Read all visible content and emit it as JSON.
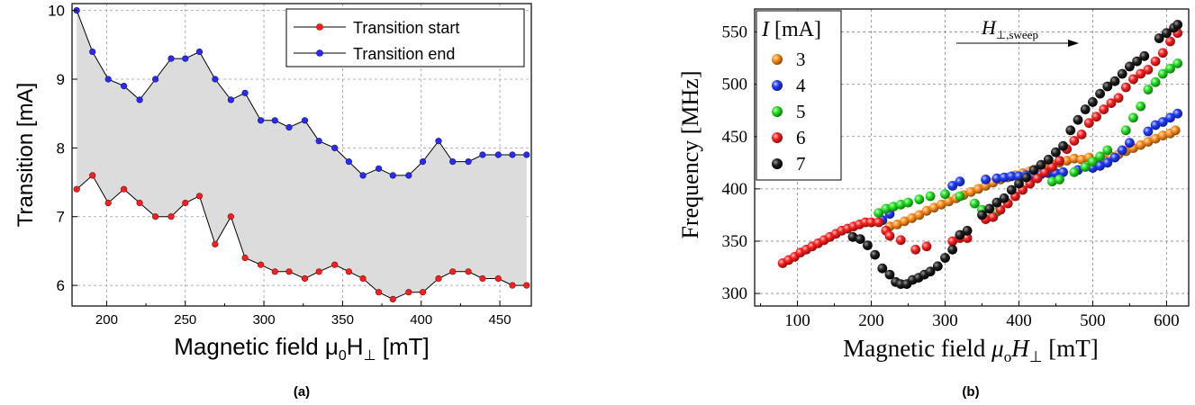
{
  "chart_data": [
    {
      "panel_label": "(a)",
      "type": "line",
      "title": "",
      "xlabel": "Magnetic field μ0H⊥ [mT]",
      "xlabel_parts": {
        "main": "Magnetic field μ",
        "sub": "0",
        "mid": "H",
        "sub2": "⊥",
        "unit": " [mT]"
      },
      "ylabel": "Transition [mA]",
      "xlim": [
        178,
        470
      ],
      "ylim": [
        5.7,
        10.1
      ],
      "xticks": [
        200,
        250,
        300,
        350,
        400,
        450
      ],
      "yticks": [
        6,
        7,
        8,
        9,
        10
      ],
      "grid": true,
      "legend_position": "top-right",
      "fill_between": true,
      "x": [
        181,
        191,
        201,
        211,
        221,
        231,
        241,
        250,
        259,
        269,
        279,
        288,
        298,
        307,
        316,
        326,
        335,
        345,
        354,
        363,
        373,
        382,
        392,
        401,
        411,
        420,
        430,
        439,
        449,
        458,
        467
      ],
      "series": [
        {
          "name": "Transition start",
          "color": "#ff1e1e",
          "values": [
            7.4,
            7.6,
            7.2,
            7.4,
            7.2,
            7.0,
            7.0,
            7.2,
            7.3,
            6.6,
            7.0,
            6.4,
            6.3,
            6.2,
            6.2,
            6.1,
            6.2,
            6.3,
            6.2,
            6.1,
            5.9,
            5.8,
            5.9,
            5.9,
            6.1,
            6.2,
            6.2,
            6.1,
            6.1,
            6.0,
            6.0
          ]
        },
        {
          "name": "Transition end",
          "color": "#2a2aff",
          "values": [
            10.0,
            9.4,
            9.0,
            8.9,
            8.7,
            9.0,
            9.3,
            9.3,
            9.4,
            9.0,
            8.7,
            8.8,
            8.4,
            8.4,
            8.3,
            8.4,
            8.1,
            8.0,
            7.8,
            7.6,
            7.7,
            7.6,
            7.6,
            7.8,
            8.1,
            7.8,
            7.8,
            7.9,
            7.9,
            7.9,
            7.9
          ]
        }
      ]
    },
    {
      "panel_label": "(b)",
      "type": "scatter",
      "title": "",
      "xlabel": "Magnetic field μoH⊥ [mT]",
      "xlabel_parts": {
        "main": "Magnetic field ",
        "mu": "μ",
        "sub": "o",
        "mid": "H",
        "sub2": "⊥",
        "unit": " [mT]"
      },
      "ylabel": "Frequency [MHz]",
      "xlim": [
        42,
        630
      ],
      "ylim": [
        288,
        572
      ],
      "xticks": [
        100,
        200,
        300,
        400,
        500,
        600
      ],
      "yticks": [
        300,
        350,
        400,
        450,
        500,
        550
      ],
      "grid": true,
      "legend_position": "top-left",
      "legend_title": "I [mA]",
      "legend_title_parts": {
        "italic": "I",
        "rest": " [mA]"
      },
      "annotation": {
        "main": "H",
        "sub": "⊥,sweep"
      },
      "series": [
        {
          "name": "3",
          "color": "#ff8c1a",
          "points": [
            [
              225,
              364
            ],
            [
              235,
              366
            ],
            [
              245,
              369
            ],
            [
              255,
              372
            ],
            [
              265,
              375
            ],
            [
              275,
              379
            ],
            [
              285,
              382
            ],
            [
              295,
              385
            ],
            [
              305,
              388
            ],
            [
              315,
              391
            ],
            [
              325,
              394
            ],
            [
              335,
              397
            ],
            [
              345,
              400
            ],
            [
              355,
              403
            ],
            [
              365,
              406
            ],
            [
              375,
              409
            ],
            [
              385,
              411
            ],
            [
              395,
              413
            ],
            [
              405,
              415
            ],
            [
              415,
              417
            ],
            [
              425,
              419
            ],
            [
              435,
              421
            ],
            [
              445,
              423
            ],
            [
              455,
              425
            ],
            [
              465,
              427
            ],
            [
              475,
              429
            ],
            [
              485,
              428
            ],
            [
              495,
              430
            ],
            [
              505,
              426
            ],
            [
              515,
              428
            ],
            [
              525,
              431
            ],
            [
              535,
              433
            ],
            [
              545,
              436
            ],
            [
              555,
              439
            ],
            [
              565,
              442
            ],
            [
              575,
              445
            ],
            [
              585,
              448
            ],
            [
              595,
              451
            ],
            [
              605,
              453
            ],
            [
              612,
              456
            ]
          ]
        },
        {
          "name": "4",
          "color": "#1f3bff",
          "points": [
            [
              215,
              370
            ],
            [
              225,
              376
            ],
            [
              310,
              403
            ],
            [
              320,
              407
            ],
            [
              355,
              409
            ],
            [
              370,
              410
            ],
            [
              380,
              411
            ],
            [
              390,
              412
            ],
            [
              400,
              412
            ],
            [
              410,
              413
            ],
            [
              420,
              413
            ],
            [
              430,
              414
            ],
            [
              440,
              415
            ],
            [
              450,
              415
            ],
            [
              460,
              416
            ],
            [
              480,
              418
            ],
            [
              500,
              420
            ],
            [
              510,
              422
            ],
            [
              520,
              425
            ],
            [
              530,
              430
            ],
            [
              540,
              437
            ],
            [
              550,
              444
            ],
            [
              575,
              455
            ],
            [
              585,
              461
            ],
            [
              595,
              464
            ],
            [
              605,
              468
            ],
            [
              615,
              472
            ]
          ]
        },
        {
          "name": "5",
          "color": "#22e022",
          "points": [
            [
              210,
              377
            ],
            [
              220,
              381
            ],
            [
              230,
              383
            ],
            [
              240,
              385
            ],
            [
              250,
              387
            ],
            [
              265,
              390
            ],
            [
              280,
              393
            ],
            [
              300,
              395
            ],
            [
              320,
              393
            ],
            [
              340,
              386
            ],
            [
              350,
              380
            ],
            [
              360,
              374
            ],
            [
              370,
              378
            ],
            [
              445,
              407
            ],
            [
              455,
              409
            ],
            [
              475,
              416
            ],
            [
              490,
              421
            ],
            [
              500,
              426
            ],
            [
              510,
              431
            ],
            [
              520,
              437
            ],
            [
              545,
              456
            ],
            [
              555,
              468
            ],
            [
              565,
              479
            ],
            [
              575,
              495
            ],
            [
              585,
              502
            ],
            [
              595,
              510
            ],
            [
              605,
              515
            ],
            [
              615,
              520
            ]
          ]
        },
        {
          "name": "6",
          "color": "#ff1e1e",
          "points": [
            [
              80,
              329
            ],
            [
              88,
              332
            ],
            [
              96,
              335
            ],
            [
              104,
              339
            ],
            [
              112,
              342
            ],
            [
              120,
              345
            ],
            [
              128,
              348
            ],
            [
              136,
              351
            ],
            [
              144,
              354
            ],
            [
              152,
              357
            ],
            [
              160,
              360
            ],
            [
              168,
              362
            ],
            [
              176,
              364
            ],
            [
              184,
              366
            ],
            [
              192,
              368
            ],
            [
              200,
              368
            ],
            [
              210,
              368
            ],
            [
              220,
              360
            ],
            [
              225,
              355
            ],
            [
              240,
              351
            ],
            [
              260,
              342
            ],
            [
              275,
              345
            ],
            [
              310,
              350
            ],
            [
              320,
              353
            ],
            [
              330,
              353
            ],
            [
              355,
              371
            ],
            [
              365,
              373
            ],
            [
              375,
              380
            ],
            [
              385,
              386
            ],
            [
              395,
              393
            ],
            [
              405,
              399
            ],
            [
              415,
              405
            ],
            [
              425,
              410
            ],
            [
              435,
              416
            ],
            [
              445,
              421
            ],
            [
              455,
              427
            ],
            [
              465,
              438
            ],
            [
              475,
              446
            ],
            [
              485,
              452
            ],
            [
              495,
              463
            ],
            [
              505,
              469
            ],
            [
              515,
              476
            ],
            [
              525,
              482
            ],
            [
              535,
              487
            ],
            [
              545,
              497
            ],
            [
              555,
              505
            ],
            [
              565,
              510
            ],
            [
              575,
              514
            ],
            [
              585,
              522
            ],
            [
              595,
              530
            ],
            [
              605,
              541
            ],
            [
              615,
              549
            ]
          ]
        },
        {
          "name": "7",
          "color": "#000000",
          "points": [
            [
              175,
              354
            ],
            [
              185,
              352
            ],
            [
              195,
              346
            ],
            [
              205,
              337
            ],
            [
              215,
              324
            ],
            [
              225,
              318
            ],
            [
              233,
              311
            ],
            [
              240,
              309
            ],
            [
              248,
              309
            ],
            [
              256,
              313
            ],
            [
              264,
              315
            ],
            [
              272,
              318
            ],
            [
              280,
              321
            ],
            [
              290,
              326
            ],
            [
              300,
              334
            ],
            [
              310,
              342
            ],
            [
              320,
              356
            ],
            [
              330,
              360
            ],
            [
              350,
              375
            ],
            [
              360,
              381
            ],
            [
              370,
              387
            ],
            [
              380,
              391
            ],
            [
              390,
              399
            ],
            [
              400,
              405
            ],
            [
              410,
              411
            ],
            [
              420,
              418
            ],
            [
              430,
              423
            ],
            [
              440,
              428
            ],
            [
              450,
              435
            ],
            [
              460,
              441
            ],
            [
              470,
              456
            ],
            [
              480,
              466
            ],
            [
              490,
              476
            ],
            [
              500,
              483
            ],
            [
              510,
              491
            ],
            [
              520,
              498
            ],
            [
              530,
              503
            ],
            [
              540,
              510
            ],
            [
              550,
              517
            ],
            [
              560,
              522
            ],
            [
              570,
              527
            ],
            [
              590,
              544
            ],
            [
              600,
              549
            ],
            [
              610,
              554
            ],
            [
              615,
              557
            ]
          ]
        }
      ]
    }
  ]
}
